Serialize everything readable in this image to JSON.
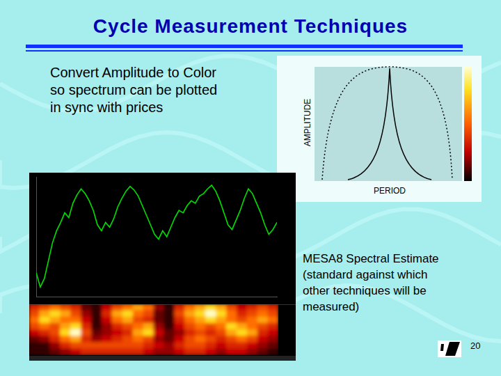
{
  "header": {
    "title": "Cycle Measurement Techniques"
  },
  "intro_lines": [
    "Convert Amplitude to Color",
    "so spectrum can be plotted",
    "in sync with prices"
  ],
  "diagram": {
    "y_label": "AMPLITUDE",
    "x_label": "PERIOD"
  },
  "chart_data": {
    "type": "line",
    "color": "#00e000",
    "grid": false,
    "tick_labels": false,
    "x": [
      0,
      1,
      2,
      3,
      4,
      5,
      6,
      7,
      8,
      9,
      10,
      11,
      12,
      13,
      14,
      15,
      16,
      17,
      18,
      19,
      20,
      21,
      22,
      23,
      24,
      25,
      26,
      27,
      28,
      29,
      30,
      31,
      32,
      33,
      34,
      35,
      36,
      37,
      38,
      39,
      40,
      41,
      42,
      43,
      44,
      45,
      46,
      47,
      48,
      49,
      50,
      51,
      52,
      53,
      54,
      55,
      56,
      57,
      58,
      59
    ],
    "values": [
      20,
      8,
      15,
      30,
      45,
      55,
      62,
      70,
      66,
      78,
      85,
      90,
      86,
      80,
      72,
      60,
      55,
      62,
      58,
      65,
      75,
      82,
      88,
      92,
      89,
      84,
      76,
      68,
      60,
      52,
      48,
      55,
      50,
      58,
      66,
      72,
      70,
      76,
      80,
      78,
      84,
      86,
      90,
      93,
      88,
      80,
      70,
      60,
      56,
      64,
      72,
      82,
      90,
      86,
      78,
      70,
      60,
      52,
      56,
      62
    ],
    "xlim": [
      0,
      59
    ],
    "ylim": [
      0,
      100
    ]
  },
  "spectrogram": {
    "color_range": [
      0,
      1
    ],
    "cells": [
      [
        0.5,
        0.6,
        0.7,
        0.6,
        0.5,
        0.2,
        0.1,
        0.4,
        0.6,
        0.7,
        0.8,
        0.7,
        0.3,
        0.1,
        0.5,
        0.7,
        0.8,
        0.9,
        0.8,
        0.6,
        0.4,
        0.5,
        0.6,
        0.5
      ],
      [
        0.6,
        0.8,
        0.9,
        0.8,
        0.6,
        0.3,
        0.1,
        0.5,
        0.8,
        0.9,
        0.7,
        0.6,
        0.2,
        0.1,
        0.6,
        0.8,
        0.9,
        1.0,
        0.9,
        0.7,
        0.5,
        0.6,
        0.7,
        0.6
      ],
      [
        0.7,
        0.9,
        0.8,
        0.7,
        0.7,
        0.4,
        0.1,
        0.4,
        0.7,
        0.8,
        0.6,
        0.5,
        0.2,
        0.1,
        0.5,
        0.7,
        0.8,
        0.9,
        0.8,
        0.7,
        0.6,
        0.7,
        0.8,
        0.7
      ],
      [
        0.6,
        0.7,
        0.6,
        0.8,
        0.9,
        0.5,
        0.1,
        0.3,
        0.5,
        0.6,
        0.7,
        0.8,
        0.3,
        0.1,
        0.4,
        0.6,
        0.7,
        0.6,
        0.7,
        0.9,
        0.8,
        0.7,
        0.6,
        0.5
      ],
      [
        0.4,
        0.5,
        0.6,
        0.9,
        1.0,
        0.6,
        0.2,
        0.3,
        0.4,
        0.5,
        0.8,
        0.9,
        0.4,
        0.2,
        0.3,
        0.5,
        0.6,
        0.5,
        0.6,
        0.8,
        0.9,
        0.8,
        0.5,
        0.4
      ],
      [
        0.2,
        0.3,
        0.5,
        0.7,
        0.8,
        0.5,
        0.3,
        0.4,
        0.5,
        0.6,
        0.7,
        0.6,
        0.3,
        0.2,
        0.4,
        0.6,
        0.7,
        0.6,
        0.5,
        0.6,
        0.7,
        0.6,
        0.4,
        0.3
      ],
      [
        0.1,
        0.1,
        0.3,
        0.5,
        0.6,
        0.6,
        0.6,
        0.6,
        0.6,
        0.6,
        0.6,
        0.5,
        0.4,
        0.3,
        0.5,
        0.6,
        0.6,
        0.5,
        0.4,
        0.5,
        0.5,
        0.4,
        0.3,
        0.2
      ],
      [
        0.1,
        0.1,
        0.2,
        0.3,
        0.4,
        0.5,
        0.5,
        0.5,
        0.5,
        0.5,
        0.5,
        0.4,
        0.3,
        0.3,
        0.4,
        0.5,
        0.5,
        0.4,
        0.3,
        0.4,
        0.4,
        0.3,
        0.2,
        0.1
      ]
    ]
  },
  "caption_lines": [
    "MESA8 Spectral Estimate",
    "(standard against which",
    "other techniques will be",
    "measured)"
  ],
  "page_number": 20
}
